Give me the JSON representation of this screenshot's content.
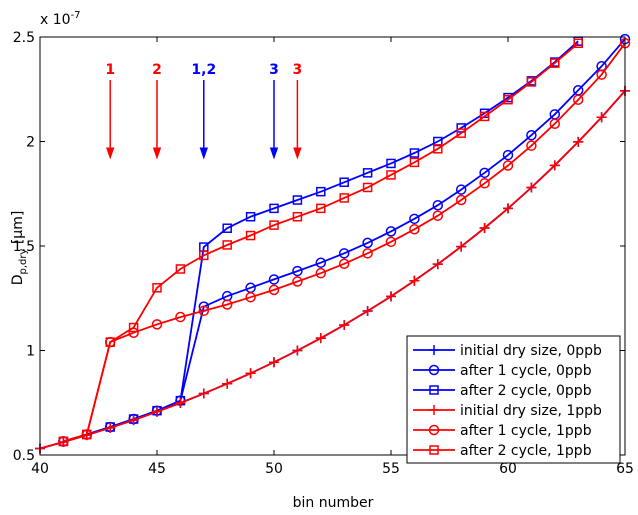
{
  "chart_data": {
    "type": "line",
    "xlabel": "bin number",
    "ylabel": "D",
    "ylabel_sub": "p,dry",
    "ylabel_unit": " [µm]",
    "y_exponent": "x 10",
    "y_exponent_power": "-7",
    "xlim": [
      40,
      65
    ],
    "ylim": [
      0.5,
      2.5
    ],
    "xticks": [
      40,
      45,
      50,
      55,
      60,
      65
    ],
    "yticks": [
      0.5,
      1,
      1.5,
      2,
      2.5
    ],
    "x_tick_labels": [
      "40",
      "45",
      "50",
      "55",
      "60",
      "65"
    ],
    "y_tick_labels": [
      "0.5",
      "1",
      "1.5",
      "2",
      "2.5"
    ],
    "grid": false,
    "legend_position": "lower-right",
    "colors": {
      "blue": "#0000ff",
      "red": "#ff0000"
    },
    "series": [
      {
        "name": "initial dry size, 0ppb",
        "color": "#0000ff",
        "marker": "plus",
        "x": [
          40,
          41,
          42,
          43,
          44,
          45,
          46,
          47,
          48,
          49,
          50,
          51,
          52,
          53,
          54,
          55,
          56,
          57,
          58,
          59,
          60,
          61,
          62,
          63,
          64,
          65
        ],
        "y": [
          0.531,
          0.562,
          0.595,
          0.63,
          0.667,
          0.707,
          0.749,
          0.794,
          0.841,
          0.891,
          0.944,
          1.0,
          1.059,
          1.122,
          1.189,
          1.259,
          1.334,
          1.413,
          1.497,
          1.586,
          1.68,
          1.78,
          1.886,
          1.998,
          2.116,
          2.242
        ]
      },
      {
        "name": "after 1 cycle, 0ppb",
        "color": "#0000ff",
        "marker": "circle",
        "x": [
          41,
          42,
          43,
          44,
          45,
          46,
          47,
          48,
          49,
          50,
          51,
          52,
          53,
          54,
          55,
          56,
          57,
          58,
          59,
          60,
          61,
          62,
          63,
          64,
          65
        ],
        "y": [
          0.565,
          0.598,
          0.634,
          0.672,
          0.712,
          0.76,
          1.21,
          1.26,
          1.3,
          1.34,
          1.38,
          1.42,
          1.465,
          1.515,
          1.57,
          1.63,
          1.695,
          1.77,
          1.85,
          1.935,
          2.03,
          2.13,
          2.245,
          2.36,
          2.49
        ]
      },
      {
        "name": "after 2 cycle, 0ppb",
        "color": "#0000ff",
        "marker": "square",
        "x": [
          41,
          42,
          43,
          44,
          45,
          46,
          47,
          48,
          49,
          50,
          51,
          52,
          53,
          54,
          55,
          56,
          57,
          58,
          59,
          60,
          61,
          62,
          63
        ],
        "y": [
          0.565,
          0.598,
          0.634,
          0.672,
          0.712,
          0.76,
          1.495,
          1.585,
          1.64,
          1.68,
          1.72,
          1.76,
          1.805,
          1.85,
          1.895,
          1.945,
          2.0,
          2.065,
          2.135,
          2.21,
          2.29,
          2.38,
          2.48
        ]
      },
      {
        "name": "initial dry size, 1ppb",
        "color": "#ff0000",
        "marker": "plus",
        "x": [
          40,
          41,
          42,
          43,
          44,
          45,
          46,
          47,
          48,
          49,
          50,
          51,
          52,
          53,
          54,
          55,
          56,
          57,
          58,
          59,
          60,
          61,
          62,
          63,
          64,
          65
        ],
        "y": [
          0.531,
          0.562,
          0.595,
          0.63,
          0.667,
          0.707,
          0.749,
          0.794,
          0.841,
          0.891,
          0.944,
          1.0,
          1.059,
          1.122,
          1.189,
          1.259,
          1.334,
          1.413,
          1.497,
          1.586,
          1.68,
          1.78,
          1.886,
          1.998,
          2.116,
          2.242
        ]
      },
      {
        "name": "after 1 cycle, 1ppb",
        "color": "#ff0000",
        "marker": "circle",
        "x": [
          41,
          42,
          43,
          44,
          45,
          46,
          47,
          48,
          49,
          50,
          51,
          52,
          53,
          54,
          55,
          56,
          57,
          58,
          59,
          60,
          61,
          62,
          63,
          64,
          65
        ],
        "y": [
          0.565,
          0.598,
          1.04,
          1.085,
          1.125,
          1.16,
          1.19,
          1.22,
          1.255,
          1.29,
          1.33,
          1.37,
          1.415,
          1.465,
          1.52,
          1.58,
          1.645,
          1.72,
          1.8,
          1.885,
          1.98,
          2.085,
          2.2,
          2.32,
          2.47
        ]
      },
      {
        "name": "after 2 cycle, 1ppb",
        "color": "#ff0000",
        "marker": "square",
        "x": [
          41,
          42,
          43,
          44,
          45,
          46,
          47,
          48,
          49,
          50,
          51,
          52,
          53,
          54,
          55,
          56,
          57,
          58,
          59,
          60,
          61,
          62,
          63
        ],
        "y": [
          0.565,
          0.598,
          1.04,
          1.11,
          1.3,
          1.39,
          1.455,
          1.505,
          1.55,
          1.6,
          1.64,
          1.68,
          1.73,
          1.78,
          1.84,
          1.9,
          1.965,
          2.04,
          2.12,
          2.2,
          2.285,
          2.375,
          2.47
        ]
      }
    ],
    "annotations": [
      {
        "text": "1",
        "x": 43,
        "color": "#ff0000"
      },
      {
        "text": "2",
        "x": 45,
        "color": "#ff0000"
      },
      {
        "text": "1,2",
        "x": 47,
        "color": "#0000ff"
      },
      {
        "text": "3",
        "x": 50,
        "color": "#0000ff"
      },
      {
        "text": "3",
        "x": 51,
        "color": "#ff0000"
      }
    ]
  }
}
